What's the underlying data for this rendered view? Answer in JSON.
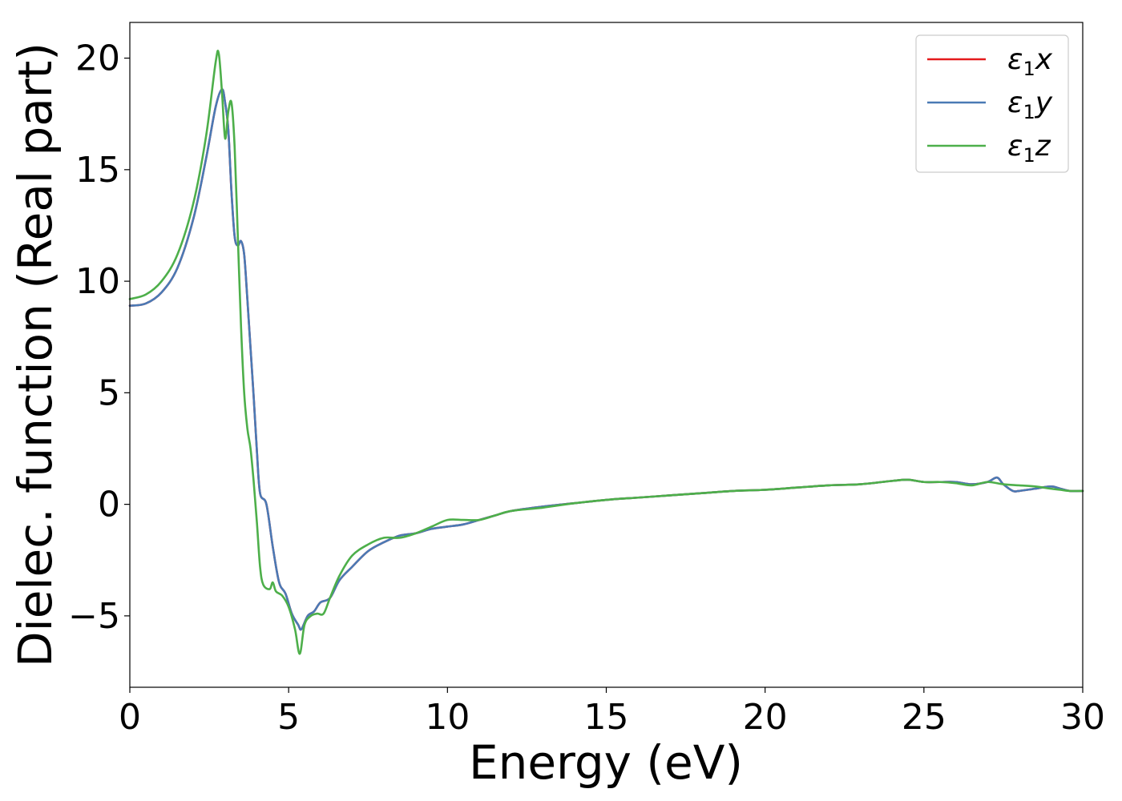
{
  "chart_data": {
    "type": "line",
    "title": "",
    "xlabel": "Energy (eV)",
    "ylabel": "Dielec. function (Real part)",
    "xlim": [
      0,
      30
    ],
    "ylim": [
      -8.2,
      21.6
    ],
    "xticks": [
      0,
      5,
      10,
      15,
      20,
      25,
      30
    ],
    "xtick_labels": [
      "0",
      "5",
      "10",
      "15",
      "20",
      "25",
      "30"
    ],
    "yticks": [
      -5,
      0,
      5,
      10,
      15,
      20
    ],
    "ytick_labels": [
      "−5",
      "0",
      "5",
      "10",
      "15",
      "20"
    ],
    "grid": false,
    "legend_position": "top-right",
    "series": [
      {
        "name": "ε₁x",
        "name_base": "ε",
        "name_sub": "1",
        "name_var": "x",
        "color": "#e41a1c",
        "x": [
          0,
          0.5,
          1.0,
          1.5,
          2.0,
          2.4,
          2.7,
          2.9,
          3.0,
          3.1,
          3.2,
          3.3,
          3.4,
          3.5,
          3.6,
          3.7,
          3.8,
          3.9,
          4.0,
          4.1,
          4.3,
          4.5,
          4.7,
          4.9,
          5.1,
          5.3,
          5.4,
          5.6,
          5.8,
          6.0,
          6.3,
          6.6,
          7.0,
          7.5,
          8.0,
          8.5,
          9.0,
          9.5,
          10.0,
          10.5,
          11.0,
          11.5,
          12.0,
          13.0,
          14.0,
          15.0,
          16.0,
          17.0,
          18.0,
          19.0,
          20.0,
          21.0,
          22.0,
          23.0,
          24.0,
          24.5,
          25.0,
          25.5,
          26.0,
          26.5,
          27.0,
          27.3,
          27.5,
          27.8,
          28.0,
          28.5,
          29.0,
          29.3,
          29.6,
          30.0
        ],
        "y": [
          8.9,
          9.0,
          9.5,
          10.6,
          12.8,
          15.5,
          17.8,
          18.6,
          18.0,
          16.8,
          14.0,
          12.0,
          11.6,
          11.8,
          11.2,
          9.2,
          7.0,
          4.8,
          2.4,
          0.5,
          0.0,
          -1.9,
          -3.5,
          -4.0,
          -4.9,
          -5.4,
          -5.6,
          -5.0,
          -4.8,
          -4.4,
          -4.2,
          -3.4,
          -2.8,
          -2.1,
          -1.7,
          -1.4,
          -1.3,
          -1.1,
          -1.0,
          -0.9,
          -0.7,
          -0.5,
          -0.3,
          -0.1,
          0.05,
          0.2,
          0.3,
          0.4,
          0.5,
          0.6,
          0.65,
          0.75,
          0.85,
          0.9,
          1.05,
          1.1,
          1.0,
          1.0,
          1.0,
          0.9,
          1.0,
          1.2,
          0.9,
          0.6,
          0.6,
          0.7,
          0.8,
          0.7,
          0.6,
          0.6
        ]
      },
      {
        "name": "ε₁y",
        "name_base": "ε",
        "name_sub": "1",
        "name_var": "y",
        "color": "#4a7ab5",
        "x": [
          0,
          0.5,
          1.0,
          1.5,
          2.0,
          2.4,
          2.7,
          2.9,
          3.0,
          3.1,
          3.2,
          3.3,
          3.4,
          3.5,
          3.6,
          3.7,
          3.8,
          3.9,
          4.0,
          4.1,
          4.3,
          4.5,
          4.7,
          4.9,
          5.1,
          5.3,
          5.4,
          5.6,
          5.8,
          6.0,
          6.3,
          6.6,
          7.0,
          7.5,
          8.0,
          8.5,
          9.0,
          9.5,
          10.0,
          10.5,
          11.0,
          11.5,
          12.0,
          13.0,
          14.0,
          15.0,
          16.0,
          17.0,
          18.0,
          19.0,
          20.0,
          21.0,
          22.0,
          23.0,
          24.0,
          24.5,
          25.0,
          25.5,
          26.0,
          26.5,
          27.0,
          27.3,
          27.5,
          27.8,
          28.0,
          28.5,
          29.0,
          29.3,
          29.6,
          30.0
        ],
        "y": [
          8.9,
          9.0,
          9.5,
          10.6,
          12.8,
          15.5,
          17.8,
          18.6,
          18.0,
          16.8,
          14.0,
          12.0,
          11.6,
          11.8,
          11.2,
          9.2,
          7.0,
          4.8,
          2.4,
          0.5,
          0.0,
          -1.9,
          -3.5,
          -4.0,
          -4.9,
          -5.4,
          -5.6,
          -5.0,
          -4.8,
          -4.4,
          -4.2,
          -3.4,
          -2.8,
          -2.1,
          -1.7,
          -1.4,
          -1.3,
          -1.1,
          -1.0,
          -0.9,
          -0.7,
          -0.5,
          -0.3,
          -0.1,
          0.05,
          0.2,
          0.3,
          0.4,
          0.5,
          0.6,
          0.65,
          0.75,
          0.85,
          0.9,
          1.05,
          1.1,
          1.0,
          1.0,
          1.0,
          0.9,
          1.0,
          1.2,
          0.9,
          0.6,
          0.6,
          0.7,
          0.8,
          0.7,
          0.6,
          0.6
        ]
      },
      {
        "name": "ε₁z",
        "name_base": "ε",
        "name_sub": "1",
        "name_var": "z",
        "color": "#4daf4a",
        "x": [
          0,
          0.5,
          1.0,
          1.5,
          2.0,
          2.4,
          2.7,
          2.8,
          2.9,
          3.0,
          3.1,
          3.2,
          3.3,
          3.4,
          3.5,
          3.6,
          3.7,
          3.8,
          3.9,
          4.0,
          4.1,
          4.2,
          4.4,
          4.5,
          4.6,
          4.8,
          5.0,
          5.2,
          5.35,
          5.5,
          5.7,
          5.9,
          6.1,
          6.3,
          6.6,
          7.0,
          7.5,
          8.0,
          8.5,
          9.0,
          9.5,
          10.0,
          10.5,
          11.0,
          11.5,
          12.0,
          13.0,
          14.0,
          15.0,
          16.0,
          17.0,
          18.0,
          19.0,
          20.0,
          21.0,
          22.0,
          23.0,
          24.0,
          24.5,
          25.0,
          25.5,
          26.0,
          26.5,
          27.0,
          27.5,
          28.0,
          28.5,
          29.0,
          29.3,
          29.6,
          30.0
        ],
        "y": [
          9.2,
          9.4,
          10.0,
          11.2,
          13.5,
          16.5,
          19.8,
          20.2,
          18.5,
          16.4,
          17.6,
          18.0,
          16.0,
          12.0,
          8.0,
          5.0,
          3.4,
          2.5,
          1.0,
          -0.8,
          -2.8,
          -3.6,
          -3.8,
          -3.5,
          -3.9,
          -4.1,
          -4.6,
          -5.6,
          -6.7,
          -5.4,
          -5.0,
          -4.9,
          -4.9,
          -4.2,
          -3.2,
          -2.3,
          -1.8,
          -1.5,
          -1.5,
          -1.3,
          -1.0,
          -0.7,
          -0.7,
          -0.7,
          -0.5,
          -0.3,
          -0.15,
          0.05,
          0.2,
          0.3,
          0.4,
          0.5,
          0.6,
          0.65,
          0.75,
          0.85,
          0.9,
          1.05,
          1.1,
          1.0,
          1.0,
          0.95,
          0.85,
          1.0,
          0.9,
          0.85,
          0.8,
          0.7,
          0.65,
          0.6,
          0.6
        ]
      }
    ]
  }
}
